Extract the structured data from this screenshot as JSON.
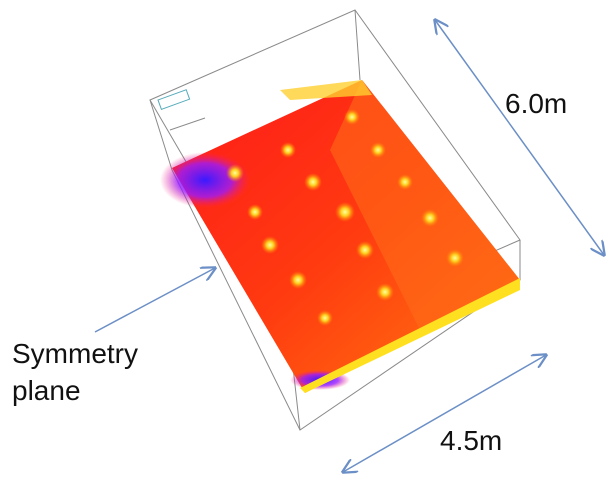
{
  "labels": {
    "length": "6.0m",
    "symmetry_line1": "Symmetry",
    "symmetry_line2": "plane",
    "width": "4.5m"
  }
}
